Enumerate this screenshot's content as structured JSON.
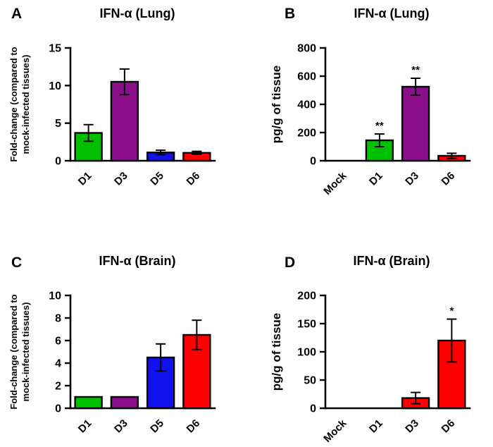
{
  "figure": {
    "background": "#ffffff",
    "text_color": "#000000",
    "axis_color": "#000000"
  },
  "chart_data": [
    {
      "panel": "A",
      "type": "bar",
      "title": "IFN-α (Lung)",
      "ylabel": "Fold-change (compared to mock-infected tissues)",
      "ylabel_lines": [
        "Fold-change (compared to",
        "mock-infected tissues)"
      ],
      "ylim": [
        0,
        15
      ],
      "yticks": [
        0,
        5,
        10,
        15
      ],
      "categories": [
        "D1",
        "D3",
        "D5",
        "D6"
      ],
      "values": [
        3.7,
        10.5,
        1.1,
        1.05
      ],
      "errors": [
        1.1,
        1.7,
        0.3,
        0.2
      ],
      "bar_colors": [
        "#00c000",
        "#8b0f8b",
        "#1111ee",
        "#ff0000"
      ],
      "sig_labels": [
        "",
        "",
        "",
        ""
      ],
      "legend": "none",
      "grid": false
    },
    {
      "panel": "B",
      "type": "bar",
      "title": "IFN-α (Lung)",
      "ylabel": "pg/g of tissue",
      "ylabel_lines": [
        "pg/g of tissue"
      ],
      "ylim": [
        0,
        800
      ],
      "yticks": [
        0,
        200,
        400,
        600,
        800
      ],
      "categories": [
        "Mock",
        "D1",
        "D3",
        "D6"
      ],
      "values": [
        0,
        145,
        525,
        35
      ],
      "errors": [
        0,
        45,
        60,
        18
      ],
      "bar_colors": [
        "#ffffff",
        "#00c000",
        "#8b0f8b",
        "#ff0000"
      ],
      "sig_labels": [
        "",
        "**",
        "**",
        ""
      ],
      "legend": "none",
      "grid": false
    },
    {
      "panel": "C",
      "type": "bar",
      "title": "IFN-α (Brain)",
      "ylabel": "Fold-change (compared to mock-infected tissues)",
      "ylabel_lines": [
        "Fold-change (compared to",
        "mock-infected tissues)"
      ],
      "ylim": [
        0,
        10
      ],
      "yticks": [
        0,
        2,
        4,
        6,
        8,
        10
      ],
      "categories": [
        "D1",
        "D3",
        "D5",
        "D6"
      ],
      "values": [
        1.0,
        1.0,
        4.5,
        6.5
      ],
      "errors": [
        0,
        0,
        1.2,
        1.3
      ],
      "bar_colors": [
        "#00c000",
        "#8b0f8b",
        "#1111ee",
        "#ff0000"
      ],
      "sig_labels": [
        "",
        "",
        "",
        ""
      ],
      "legend": "none",
      "grid": false
    },
    {
      "panel": "D",
      "type": "bar",
      "title": "IFN-α (Brain)",
      "ylabel": "pg/g of tissue",
      "ylabel_lines": [
        "pg/g of tissue"
      ],
      "ylim": [
        0,
        200
      ],
      "yticks": [
        0,
        50,
        100,
        150,
        200
      ],
      "categories": [
        "Mock",
        "D1",
        "D3",
        "D6"
      ],
      "values": [
        0,
        0,
        18,
        120
      ],
      "errors": [
        0,
        0,
        10,
        38
      ],
      "bar_colors": [
        "#ffffff",
        "#ffffff",
        "#ff0000",
        "#ff0000"
      ],
      "sig_labels": [
        "",
        "",
        "",
        "*"
      ],
      "legend": "none",
      "grid": false
    }
  ]
}
